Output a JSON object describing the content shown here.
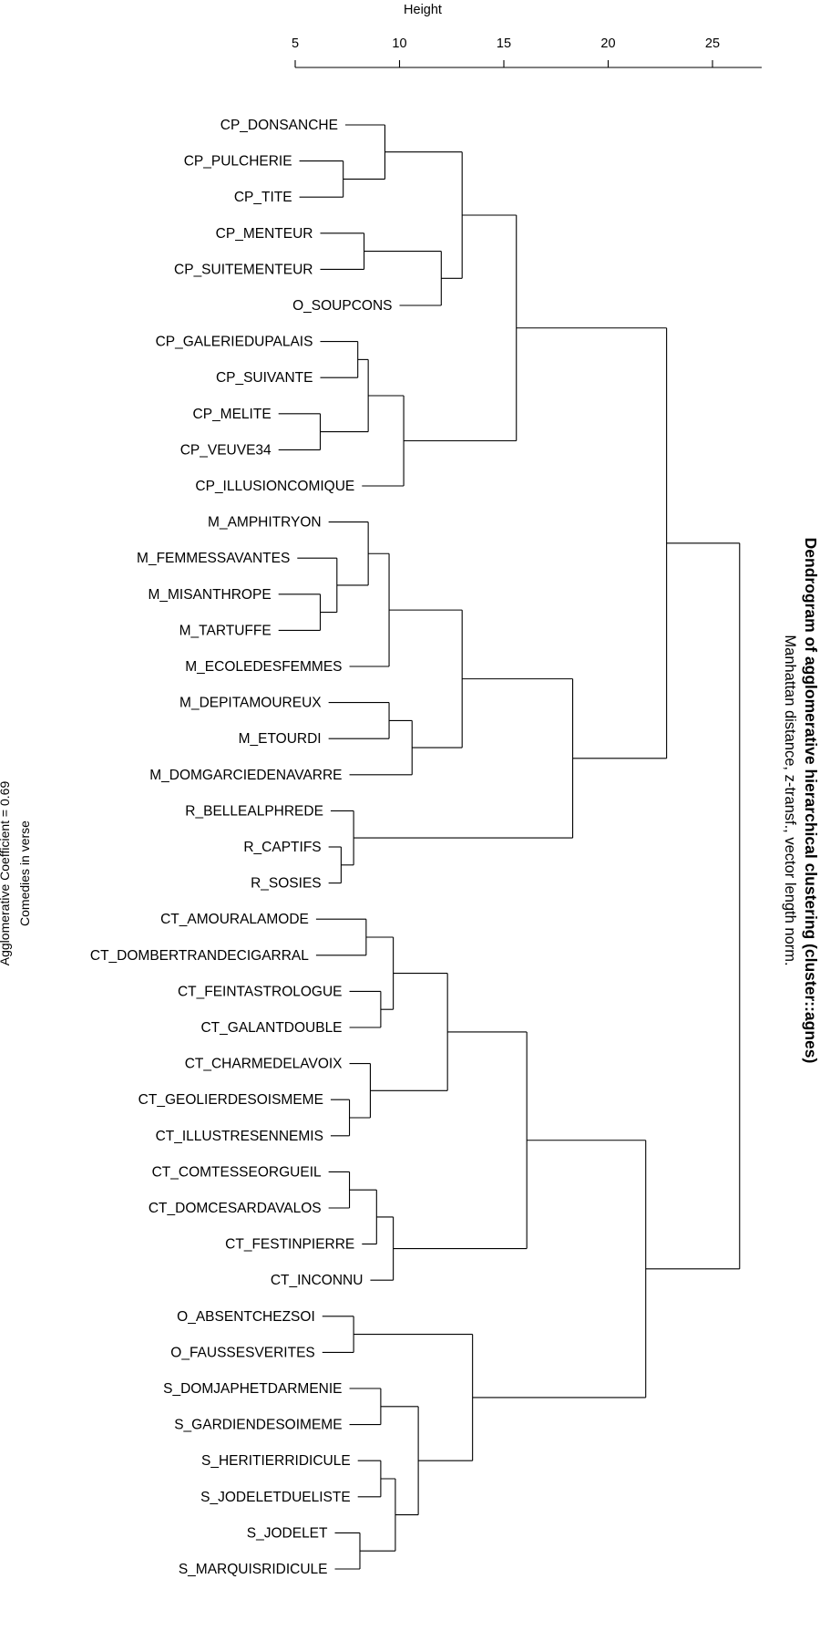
{
  "title": "Dendrogram of agglomerative hierarchical clustering (cluster::agnes)",
  "subtitle": "Manhattan distance, z-transf., vector length norm.",
  "axis": {
    "label": "Height",
    "ticks": [
      5,
      10,
      15,
      20,
      25
    ]
  },
  "side_note": {
    "line1": "Comedies in verse",
    "line2": "Agglomerative Coefficient =  0.69"
  },
  "chart_data": {
    "type": "dendrogram",
    "title": "Dendrogram of agglomerative hierarchical clustering (cluster::agnes)",
    "subtitle": "Manhattan distance, z-transf., vector length norm.",
    "axis_label": "Height",
    "axis_ticks": [
      5,
      10,
      15,
      20,
      25
    ],
    "agglomerative_coefficient": 0.69,
    "leaves": [
      {
        "label": "CP_DONSANCHE",
        "height": 7.4
      },
      {
        "label": "CP_PULCHERIE",
        "height": 5.2
      },
      {
        "label": "CP_TITE",
        "height": 5.2
      },
      {
        "label": "CP_MENTEUR",
        "height": 6.2
      },
      {
        "label": "CP_SUITEMENTEUR",
        "height": 6.2
      },
      {
        "label": "O_SOUPCONS",
        "height": 10.0
      },
      {
        "label": "CP_GALERIEDUPALAIS",
        "height": 6.2
      },
      {
        "label": "CP_SUIVANTE",
        "height": 6.2
      },
      {
        "label": "CP_MELITE",
        "height": 4.2
      },
      {
        "label": "CP_VEUVE34",
        "height": 4.2
      },
      {
        "label": "CP_ILLUSIONCOMIQUE",
        "height": 8.2
      },
      {
        "label": "M_AMPHITRYON",
        "height": 6.6
      },
      {
        "label": "M_FEMMESSAVANTES",
        "height": 5.1
      },
      {
        "label": "M_MISANTHROPE",
        "height": 4.2
      },
      {
        "label": "M_TARTUFFE",
        "height": 4.2
      },
      {
        "label": "M_ECOLEDESFEMMES",
        "height": 7.6
      },
      {
        "label": "M_DEPITAMOUREUX",
        "height": 6.6
      },
      {
        "label": "M_ETOURDI",
        "height": 6.6
      },
      {
        "label": "M_DOMGARCIEDENAVARRE",
        "height": 7.6
      },
      {
        "label": "R_BELLEALPHREDE",
        "height": 6.7
      },
      {
        "label": "R_CAPTIFS",
        "height": 6.6
      },
      {
        "label": "R_SOSIES",
        "height": 6.6
      },
      {
        "label": "CT_AMOURALAMODE",
        "height": 6.0
      },
      {
        "label": "CT_DOMBERTRANDECIGARRAL",
        "height": 6.0
      },
      {
        "label": "CT_FEINTASTROLOGUE",
        "height": 7.6
      },
      {
        "label": "CT_GALANTDOUBLE",
        "height": 7.6
      },
      {
        "label": "CT_CHARMEDELAVOIX",
        "height": 7.6
      },
      {
        "label": "CT_GEOLIERDESOISMEME",
        "height": 6.7
      },
      {
        "label": "CT_ILLUSTRESENNEMIS",
        "height": 6.7
      },
      {
        "label": "CT_COMTESSEORGUEIL",
        "height": 6.6
      },
      {
        "label": "CT_DOMCESARDAVALOS",
        "height": 6.6
      },
      {
        "label": "CT_FESTINPIERRE",
        "height": 8.2
      },
      {
        "label": "CT_INCONNU",
        "height": 8.6
      },
      {
        "label": "O_ABSENTCHEZSOI",
        "height": 6.3
      },
      {
        "label": "O_FAUSSESVERITES",
        "height": 6.3
      },
      {
        "label": "S_DOMJAPHETDARMENIE",
        "height": 7.6
      },
      {
        "label": "S_GARDIENDESOIMEME",
        "height": 7.6
      },
      {
        "label": "S_HERITIERRIDICULE",
        "height": 8.0
      },
      {
        "label": "S_JODELETDUELISTE",
        "height": 8.0
      },
      {
        "label": "S_JODELET",
        "height": 6.9
      },
      {
        "label": "S_MARQUISRIDICULE",
        "height": 6.9
      }
    ],
    "merges": [
      {
        "a": "CP_PULCHERIE",
        "b": "CP_TITE",
        "height": 7.3
      },
      {
        "a": "CP_DONSANCHE",
        "b": "(CP_PULCHERIE, CP_TITE)",
        "height": 9.3
      },
      {
        "a": "CP_MENTEUR",
        "b": "CP_SUITEMENTEUR",
        "height": 8.3
      },
      {
        "a": "(CP_MENTEUR, CP_SUITEMENTEUR)",
        "b": "O_SOUPCONS",
        "height": 12.0
      },
      {
        "a": "(CP_DONSANCHE ...)",
        "b": "(CP_MENTEUR ... O_SOUPCONS)",
        "height": 13.0
      },
      {
        "a": "CP_GALERIEDUPALAIS",
        "b": "CP_SUIVANTE",
        "height": 8.0
      },
      {
        "a": "CP_MELITE",
        "b": "CP_VEUVE34",
        "height": 6.2
      },
      {
        "a": "(CP_GALERIEDUPALAIS, CP_SUIVANTE)",
        "b": "(CP_MELITE, CP_VEUVE34)",
        "height": 8.5
      },
      {
        "a": "(CP_GALERIEDUPALAIS ... CP_VEUVE34)",
        "b": "CP_ILLUSIONCOMIQUE",
        "height": 10.2
      },
      {
        "a": "(CP_DONSANCHE ... O_SOUPCONS)",
        "b": "(CP_GALERIEDUPALAIS ... CP_ILLUSIONCOMIQUE)",
        "height": 15.6
      },
      {
        "a": "M_MISANTHROPE",
        "b": "M_TARTUFFE",
        "height": 6.2
      },
      {
        "a": "M_FEMMESSAVANTES",
        "b": "(M_MISANTHROPE, M_TARTUFFE)",
        "height": 7.0
      },
      {
        "a": "M_AMPHITRYON",
        "b": "(M_FEMMESSAVANTES ...)",
        "height": 8.5
      },
      {
        "a": "(M_AMPHITRYON ...)",
        "b": "M_ECOLEDESFEMMES",
        "height": 9.5
      },
      {
        "a": "M_DEPITAMOUREUX",
        "b": "M_ETOURDI",
        "height": 9.5
      },
      {
        "a": "(M_DEPITAMOUREUX, M_ETOURDI)",
        "b": "M_DOMGARCIEDENAVARRE",
        "height": 10.6
      },
      {
        "a": "(M_AMPHITRYON ... M_ECOLEDESFEMMES)",
        "b": "(M_DEPITAMOUREUX ... M_DOMGARCIEDENAVARRE)",
        "height": 13.0
      },
      {
        "a": "R_CAPTIFS",
        "b": "R_SOSIES",
        "height": 7.2
      },
      {
        "a": "R_BELLEALPHREDE",
        "b": "(R_CAPTIFS, R_SOSIES)",
        "height": 7.8
      },
      {
        "a": "(M_AMPHITRYON ... M_DOMGARCIEDENAVARRE)",
        "b": "(R_BELLEALPHREDE ...)",
        "height": 18.3
      },
      {
        "a": "(CP_DONSANCHE ... CP_ILLUSIONCOMIQUE)",
        "b": "(M_AMPHITRYON ... R_SOSIES)",
        "height": 22.8
      },
      {
        "a": "CT_AMOURALAMODE",
        "b": "CT_DOMBERTRANDECIGARRAL",
        "height": 8.4
      },
      {
        "a": "CT_FEINTASTROLOGUE",
        "b": "CT_GALANTDOUBLE",
        "height": 9.1
      },
      {
        "a": "(CT_AMOURALAMODE ...)",
        "b": "(CT_FEINTASTROLOGUE ...)",
        "height": 9.7
      },
      {
        "a": "CT_GEOLIERDESOISMEME",
        "b": "CT_ILLUSTRESENNEMIS",
        "height": 7.6
      },
      {
        "a": "CT_CHARMEDELAVOIX",
        "b": "(CT_GEOLIERDESOISMEME, CT_ILLUSTRESENNEMIS)",
        "height": 8.6
      },
      {
        "a": "(CT_AMOURALAMODE ... CT_GALANTDOUBLE)",
        "b": "(CT_CHARMEDELAVOIX ... CT_ILLUSTRESENNEMIS)",
        "height": 12.3
      },
      {
        "a": "CT_COMTESSEORGUEIL",
        "b": "CT_DOMCESARDAVALOS",
        "height": 7.6
      },
      {
        "a": "(CT_COMTESSEORGUEIL, CT_DOMCESARDAVALOS)",
        "b": "CT_FESTINPIERRE",
        "height": 8.9
      },
      {
        "a": "(CT_COMTESSEORGUEIL ... CT_FESTINPIERRE)",
        "b": "CT_INCONNU",
        "height": 9.7
      },
      {
        "a": "(CT_AMOURALAMODE ... CT_ILLUSTRESENNEMIS)",
        "b": "(CT_COMTESSEORGUEIL ... CT_INCONNU)",
        "height": 16.1
      },
      {
        "a": "O_ABSENTCHEZSOI",
        "b": "O_FAUSSESVERITES",
        "height": 7.8
      },
      {
        "a": "S_DOMJAPHETDARMENIE",
        "b": "S_GARDIENDESOIMEME",
        "height": 9.1
      },
      {
        "a": "S_HERITIERRIDICULE",
        "b": "S_JODELETDUELISTE",
        "height": 9.1
      },
      {
        "a": "S_JODELET",
        "b": "S_MARQUISRIDICULE",
        "height": 8.1
      },
      {
        "a": "(S_HERITIERRIDICULE, S_JODELETDUELISTE)",
        "b": "(S_JODELET, S_MARQUISRIDICULE)",
        "height": 9.8
      },
      {
        "a": "(S_DOMJAPHETDARMENIE, S_GARDIENDESOIMEME)",
        "b": "(S_HERITIERRIDICULE ... S_MARQUISRIDICULE)",
        "height": 10.9
      },
      {
        "a": "(O_ABSENTCHEZSOI, O_FAUSSESVERITES)",
        "b": "(S_DOMJAPHETDARMENIE ... S_MARQUISRIDICULE)",
        "height": 13.5
      },
      {
        "a": "(CT_AMOURALAMODE ... CT_INCONNU)",
        "b": "(O_ABSENTCHEZSOI ... S_MARQUISRIDICULE)",
        "height": 21.8
      },
      {
        "a": "(CP_DONSANCHE ... R_SOSIES)",
        "b": "(CT_AMOURALAMODE ... S_MARQUISRIDICULE)",
        "height": 26.3
      }
    ]
  }
}
